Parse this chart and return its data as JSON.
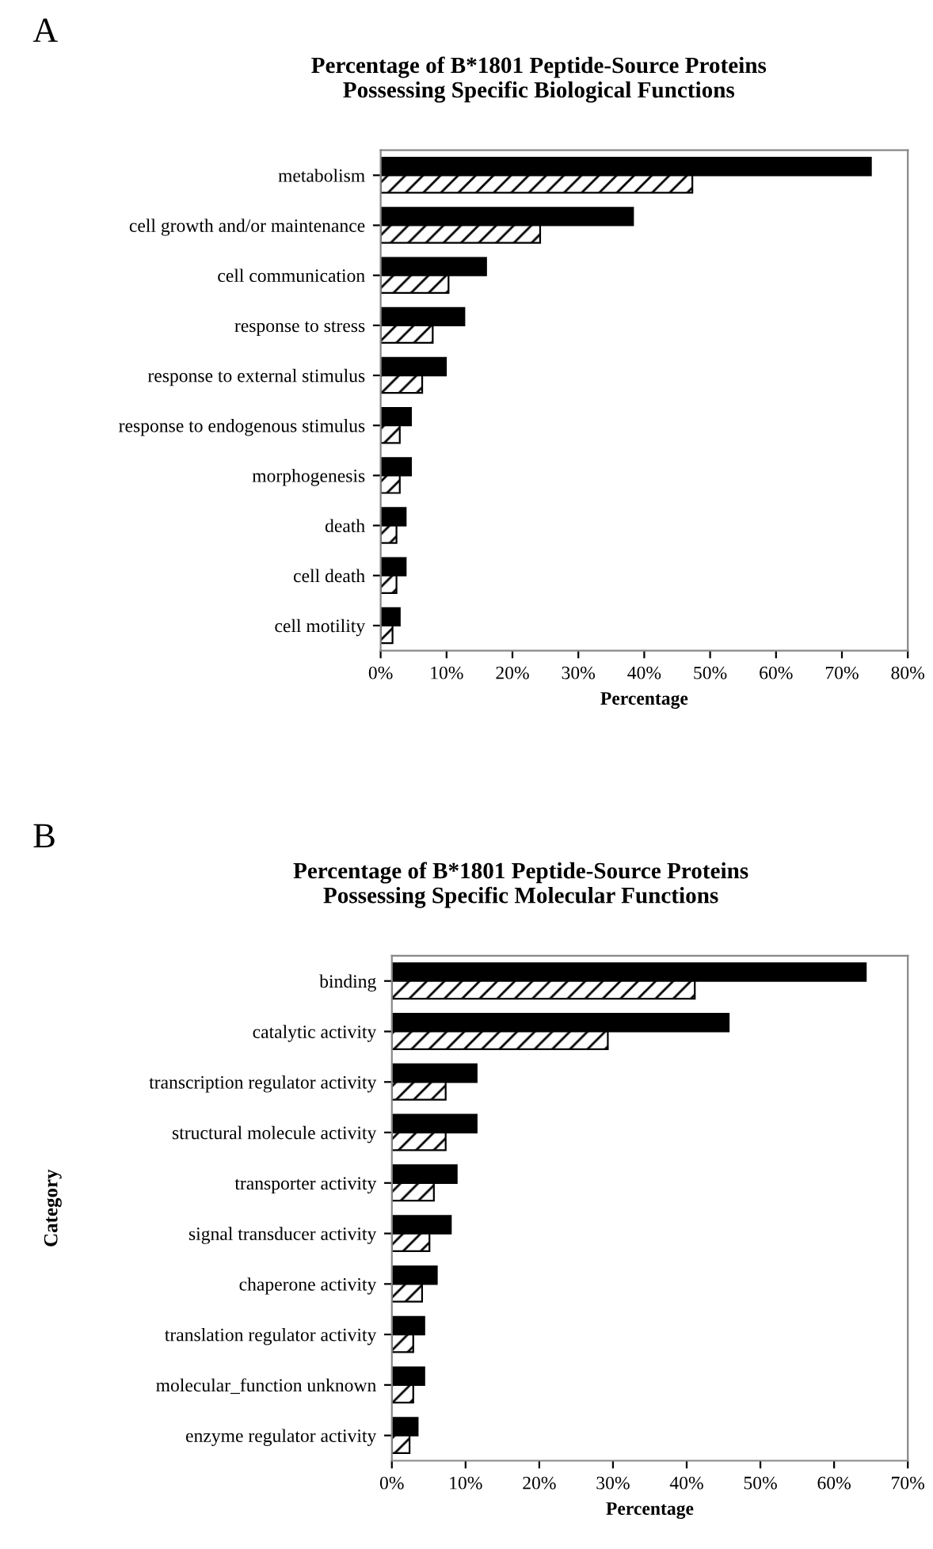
{
  "chart_data": [
    {
      "type": "bar",
      "orientation": "horizontal",
      "title": "Percentage of B*1801 Peptide-Source Proteins\nPossessing Specific Biological Functions",
      "xlabel": "Percentage",
      "annotations": [
        "A"
      ],
      "categories": [
        "metabolism",
        "cell growth and/or maintenance",
        "cell communication",
        "response to stress",
        "response to external stimulus",
        "response to endogenous stimulus",
        "morphogenesis",
        "death",
        "cell death",
        "cell motility"
      ],
      "series": [
        {
          "color": "#000000",
          "values": [
            74.4,
            38.3,
            16.0,
            12.7,
            9.9,
            4.6,
            4.6,
            3.8,
            3.8,
            2.9
          ]
        },
        {
          "color": "#000000",
          "values": [
            47.3,
            24.2,
            10.3,
            7.9,
            6.3,
            2.9,
            2.9,
            2.4,
            2.4,
            1.8
          ]
        }
      ],
      "xlim": [
        0,
        80
      ],
      "xticks": [
        {
          "value": 0,
          "label": "0%"
        },
        {
          "value": 10,
          "label": "10%"
        },
        {
          "value": 20,
          "label": "20%"
        },
        {
          "value": 30,
          "label": "30%"
        },
        {
          "value": 40,
          "label": "40%"
        },
        {
          "value": 50,
          "label": "50%"
        },
        {
          "value": 60,
          "label": "60%"
        },
        {
          "value": 70,
          "label": "70%"
        },
        {
          "value": 80,
          "label": "80%"
        }
      ],
      "grid": false,
      "legend": false
    },
    {
      "type": "bar",
      "orientation": "horizontal",
      "title": "Percentage of B*1801 Peptide-Source Proteins\nPossessing Specific Molecular Functions",
      "xlabel": "Percentage",
      "ylabel": "Category",
      "annotations": [
        "B"
      ],
      "categories": [
        "binding",
        "catalytic activity",
        "transcription regulator activity",
        "structural molecule activity",
        "transporter activity",
        "signal transducer activity",
        "chaperone activity",
        "translation regulator activity",
        "molecular_function unknown",
        "enzyme regulator activity"
      ],
      "series": [
        {
          "color": "#000000",
          "values": [
            64.3,
            45.7,
            11.5,
            11.5,
            8.8,
            8.0,
            6.1,
            4.4,
            4.4,
            3.5
          ]
        },
        {
          "color": "#000000",
          "values": [
            41.1,
            29.3,
            7.3,
            7.3,
            5.7,
            5.1,
            4.1,
            2.9,
            2.9,
            2.4
          ]
        }
      ],
      "xlim": [
        0,
        70
      ],
      "xticks": [
        {
          "value": 0,
          "label": "0%"
        },
        {
          "value": 10,
          "label": "10%"
        },
        {
          "value": 20,
          "label": "20%"
        },
        {
          "value": 30,
          "label": "30%"
        },
        {
          "value": 40,
          "label": "40%"
        },
        {
          "value": 50,
          "label": "50%"
        },
        {
          "value": 60,
          "label": "60%"
        },
        {
          "value": 70,
          "label": "70%"
        }
      ],
      "grid": false,
      "legend": false
    }
  ]
}
